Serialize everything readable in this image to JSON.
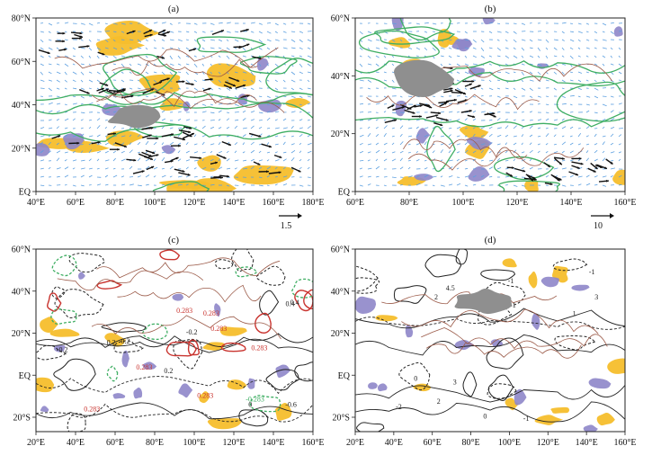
{
  "colors": {
    "yellow": "#f5be2c",
    "purple": "#8e86c9",
    "grey": "#8f8f8f",
    "green_contour": "#3fae63",
    "blue_vector": "#5b9fe0",
    "black_vector": "#111111",
    "coast": "#9b5a48",
    "red_contour": "#c9342f",
    "black_contour": "#222222"
  },
  "panels": [
    {
      "label": "(a)",
      "x_ticks": [
        "40°E",
        "60°E",
        "80°E",
        "100°E",
        "120°E",
        "140°E",
        "160°E",
        "180°E"
      ],
      "y_ticks": [
        "80°N",
        "60°N",
        "40°N",
        "20°N",
        "EQ"
      ],
      "reference_vector": "1.5",
      "annotations": []
    },
    {
      "label": "(b)",
      "x_ticks": [
        "60°E",
        "80°E",
        "100°E",
        "120°E",
        "140°E",
        "160°E"
      ],
      "y_ticks": [
        "60°N",
        "40°N",
        "20°N",
        "EQ"
      ],
      "reference_vector": "10",
      "annotations": []
    },
    {
      "label": "(c)",
      "x_ticks": [
        "20°E",
        "40°E",
        "60°E",
        "80°E",
        "100°E",
        "120°E",
        "140°E",
        "160°E"
      ],
      "y_ticks": [
        "60°N",
        "40°N",
        "20°N",
        "EQ",
        "20°S"
      ],
      "reference_vector": "",
      "annotations": [
        "0.283",
        "0.283",
        "0.283",
        "0.283",
        "0.283",
        "0.283",
        "0.283",
        "0.4",
        "-0.6",
        "-0.2",
        "0.2",
        "0",
        "0.2",
        "0.4",
        "-0.2",
        "-0.283",
        "0.2"
      ]
    },
    {
      "label": "(d)",
      "x_ticks": [
        "20°E",
        "40°E",
        "60°E",
        "80°E",
        "100°E",
        "120°E",
        "140°E",
        "160°E"
      ],
      "y_ticks": [
        "60°N",
        "40°N",
        "20°N",
        "EQ",
        "20°S"
      ],
      "reference_vector": "",
      "annotations": [
        "3",
        "2",
        "4.5",
        "3",
        "-1",
        "2",
        "1",
        "0",
        "-2",
        "1",
        "-1",
        "0",
        "-1"
      ]
    }
  ]
}
